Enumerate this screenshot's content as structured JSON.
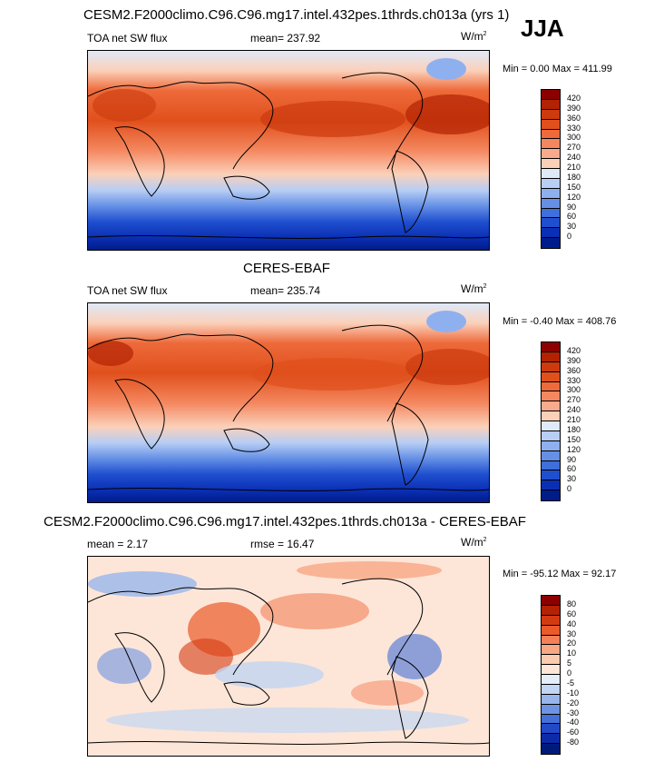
{
  "season": "JJA",
  "panels": [
    {
      "title": "CESM2.F2000climo.C96.C96.mg17.intel.432pes.1thrds.ch013a (yrs 1)",
      "left_label": "TOA net SW flux",
      "center_label": "mean= 237.92",
      "units_base": "W/m",
      "units_exp": "2",
      "range_text": "Min =   0.00 Max = 411.99"
    },
    {
      "title": "CERES-EBAF",
      "left_label": "TOA net SW flux",
      "center_label": "mean= 235.74",
      "units_base": "W/m",
      "units_exp": "2",
      "range_text": "Min =  -0.40 Max = 408.76"
    },
    {
      "title": "CESM2.F2000climo.C96.C96.mg17.intel.432pes.1thrds.ch013a - CERES-EBAF",
      "left_label": "mean =   2.17",
      "center_label": "rmse =  16.47",
      "units_base": "W/m",
      "units_exp": "2",
      "range_text": "Min = -95.12 Max =  92.17"
    }
  ],
  "colorbar_abs": {
    "levels": [
      "420",
      "390",
      "360",
      "330",
      "300",
      "270",
      "240",
      "210",
      "180",
      "150",
      "120",
      "90",
      "60",
      "30",
      "0"
    ],
    "colors": [
      "#8b0000",
      "#b22203",
      "#cc3a0e",
      "#e0501c",
      "#ee6a3a",
      "#f4875f",
      "#f8ab8c",
      "#fbd0b9",
      "#dfe9f8",
      "#b8cef4",
      "#8fb0ef",
      "#6690e6",
      "#3f6fdc",
      "#1f4fcf",
      "#0b2fb4",
      "#001c8a"
    ]
  },
  "colorbar_diff": {
    "levels": [
      "80",
      "60",
      "40",
      "30",
      "20",
      "10",
      "5",
      "0",
      "-5",
      "-10",
      "-20",
      "-30",
      "-40",
      "-60",
      "-80"
    ],
    "colors": [
      "#8b0000",
      "#b22203",
      "#d33a12",
      "#ea5a2a",
      "#f48058",
      "#f8a784",
      "#fbcbb0",
      "#fde6d8",
      "#e5edf8",
      "#c2d5f3",
      "#98b6ec",
      "#6e93e2",
      "#4470d8",
      "#2249c8",
      "#0d2aa9",
      "#001a7c"
    ]
  },
  "colors": {
    "ocean_high": "#e2552a",
    "ocean_mid": "#f59b78",
    "south_low": "#0b2fb4",
    "diff_bg": "#fde6d8"
  }
}
